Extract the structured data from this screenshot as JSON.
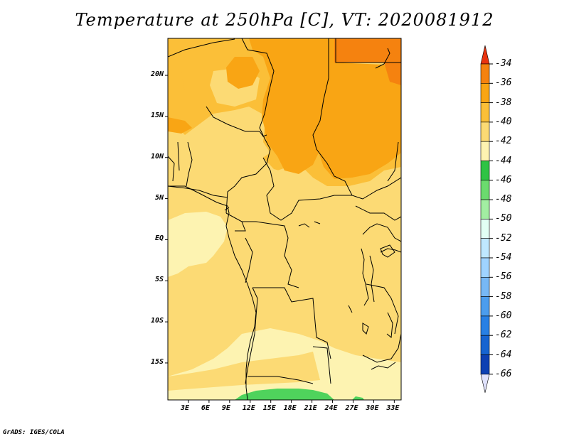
{
  "title": "Temperature at 250hPa [C], VT: 2020081912",
  "footer": "GrADS: IGES/COLA",
  "map": {
    "lat_range": [
      -19.5,
      24.5
    ],
    "lon_range": [
      0,
      34
    ],
    "lat_ticks": [
      "20N",
      "15N",
      "10N",
      "5N",
      "EQ",
      "5S",
      "10S",
      "15S"
    ],
    "lat_tick_values": [
      20,
      15,
      10,
      5,
      0,
      -5,
      -10,
      -15
    ],
    "lon_ticks": [
      "3E",
      "6E",
      "9E",
      "12E",
      "15E",
      "18E",
      "21E",
      "24E",
      "27E",
      "30E",
      "33E"
    ],
    "lon_tick_values": [
      3,
      6,
      9,
      12,
      15,
      18,
      21,
      24,
      27,
      30,
      33
    ],
    "background_color": "#fcda74"
  },
  "colorbar": {
    "labels": [
      "-34",
      "-36",
      "-38",
      "-40",
      "-42",
      "-44",
      "-46",
      "-48",
      "-50",
      "-52",
      "-54",
      "-56",
      "-58",
      "-60",
      "-62",
      "-64",
      "-66"
    ],
    "colors": [
      "#f0501e",
      "#f5820f",
      "#f9a514",
      "#fbbf38",
      "#fcda74",
      "#fdf3b1",
      "#2ec344",
      "#6bdb6e",
      "#a2eea2",
      "#e2fff4",
      "#bfe8ff",
      "#9fd3ff",
      "#77b8f5",
      "#4c9ded",
      "#2880e4",
      "#1664d1",
      "#0d40b3",
      "#111470"
    ],
    "top_arrow_color": "#e8330f",
    "bottom_arrow_color": "#e0e2fc"
  }
}
